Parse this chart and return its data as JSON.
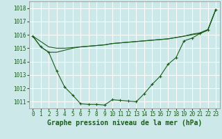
{
  "title": "Graphe pression niveau de la mer (hPa)",
  "bg_color": "#cce8e8",
  "grid_color": "#ffffff",
  "line_color": "#1a5c1a",
  "xlim": [
    -0.5,
    23.5
  ],
  "ylim": [
    1010.5,
    1018.5
  ],
  "yticks": [
    1011,
    1012,
    1013,
    1014,
    1015,
    1016,
    1017,
    1018
  ],
  "xticks": [
    0,
    1,
    2,
    3,
    4,
    5,
    6,
    7,
    8,
    9,
    10,
    11,
    12,
    13,
    14,
    15,
    16,
    17,
    18,
    19,
    20,
    21,
    22,
    23
  ],
  "series1": [
    1015.9,
    1015.1,
    1014.7,
    1013.3,
    1012.1,
    1011.5,
    1010.85,
    1010.8,
    1010.8,
    1010.75,
    1011.15,
    1011.1,
    1011.05,
    1011.0,
    1011.6,
    1012.3,
    1012.9,
    1013.8,
    1014.3,
    1015.55,
    1015.75,
    1016.1,
    1016.35,
    1017.9
  ],
  "series2": [
    1015.9,
    1015.5,
    1015.1,
    1015.0,
    1015.0,
    1015.05,
    1015.1,
    1015.15,
    1015.2,
    1015.25,
    1015.35,
    1015.4,
    1015.45,
    1015.5,
    1015.55,
    1015.6,
    1015.65,
    1015.7,
    1015.8,
    1015.9,
    1016.0,
    1016.1,
    1016.35,
    1017.9
  ],
  "series3": [
    1015.9,
    1015.1,
    1014.7,
    1014.7,
    1014.85,
    1015.0,
    1015.1,
    1015.15,
    1015.2,
    1015.25,
    1015.35,
    1015.4,
    1015.45,
    1015.5,
    1015.55,
    1015.6,
    1015.65,
    1015.7,
    1015.8,
    1015.9,
    1016.05,
    1016.15,
    1016.4,
    1017.9
  ],
  "title_fontsize": 7,
  "tick_fontsize": 5.5,
  "figsize": [
    3.2,
    2.0
  ],
  "dpi": 100
}
